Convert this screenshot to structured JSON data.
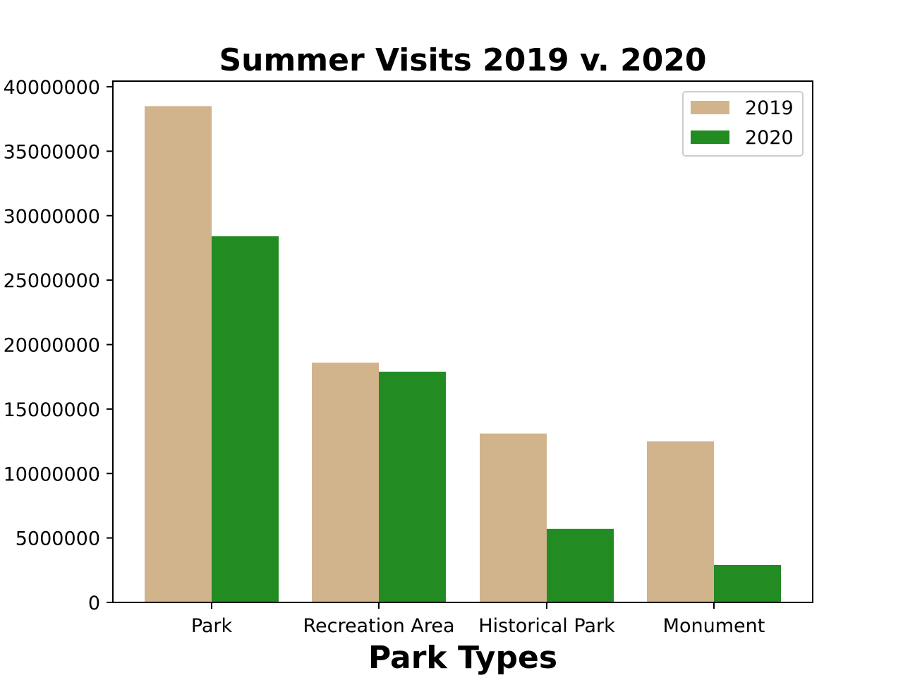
{
  "chart_data": {
    "type": "bar",
    "title": "Summer Visits 2019 v. 2020",
    "xlabel": "Park Types",
    "ylabel": "",
    "categories": [
      "Park",
      "Recreation Area",
      "Historical Park",
      "Monument"
    ],
    "series": [
      {
        "name": "2019",
        "color": "#d2b48c",
        "values": [
          38500000,
          18600000,
          13100000,
          12500000
        ]
      },
      {
        "name": "2020",
        "color": "#228b22",
        "values": [
          28400000,
          17900000,
          5700000,
          2900000
        ]
      }
    ],
    "ylim": [
      0,
      40000000
    ],
    "yticks": [
      "0",
      "5000000",
      "10000000",
      "15000000",
      "20000000",
      "25000000",
      "30000000",
      "35000000",
      "40000000"
    ],
    "grid": false,
    "legend_position": "top-right"
  }
}
